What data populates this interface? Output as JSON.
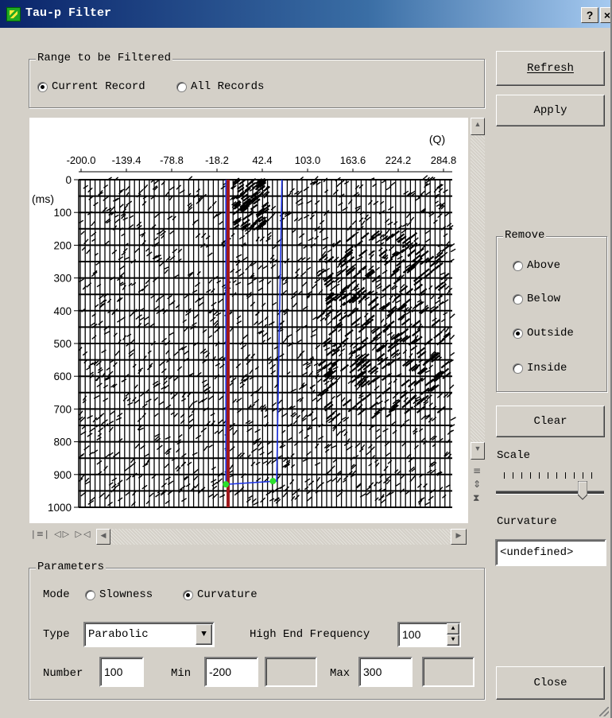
{
  "window": {
    "title": "Tau-p Filter",
    "help_label": "?",
    "close_label": "×"
  },
  "range": {
    "group_title": "Range to be Filtered",
    "options": [
      {
        "label": "Current Record",
        "selected": true
      },
      {
        "label": "All Records",
        "selected": false
      }
    ]
  },
  "buttons": {
    "refresh": "Refresh",
    "apply": "Apply",
    "clear": "Clear",
    "close": "Close"
  },
  "plot": {
    "x_unit": "(Q)",
    "y_unit": "(ms)",
    "x_ticks": [
      "-200.0",
      "-139.4",
      "-78.8",
      "-18.2",
      "42.4",
      "103.0",
      "163.6",
      "224.2",
      "284.8"
    ],
    "y_ticks": [
      "0",
      "100",
      "200",
      "300",
      "400",
      "500",
      "600",
      "700",
      "800",
      "900",
      "1000"
    ],
    "x_range": [
      -200,
      300
    ],
    "y_range": [
      0,
      1000
    ],
    "red_line_q": 0,
    "blue_polygon": [
      [
        -3,
        0
      ],
      [
        -3,
        930
      ],
      [
        65,
        920
      ],
      [
        72,
        0
      ]
    ],
    "green_points": [
      [
        -3,
        930
      ],
      [
        60,
        920
      ]
    ],
    "colors": {
      "red_line": "#a0181c",
      "blue_line": "#1f35e8",
      "green_point": "#2ce02c"
    }
  },
  "remove": {
    "group_title": "Remove",
    "options": [
      {
        "label": "Above",
        "selected": false
      },
      {
        "label": "Below",
        "selected": false
      },
      {
        "label": "Outside",
        "selected": true
      },
      {
        "label": "Inside",
        "selected": false
      }
    ]
  },
  "scale": {
    "label": "Scale",
    "value": 0.82
  },
  "curvature": {
    "label": "Curvature",
    "value": "<undefined>"
  },
  "parameters": {
    "group_title": "Parameters",
    "mode_label": "Mode",
    "mode_options": [
      {
        "label": "Slowness",
        "selected": false
      },
      {
        "label": "Curvature",
        "selected": true
      }
    ],
    "type_label": "Type",
    "type_value": "Parabolic",
    "high_end_label": "High End Frequency",
    "high_end_value": "100",
    "number_label": "Number",
    "number_value": "100",
    "min_label": "Min",
    "min_value": "-200",
    "max_label": "Max",
    "max_value": "300"
  }
}
